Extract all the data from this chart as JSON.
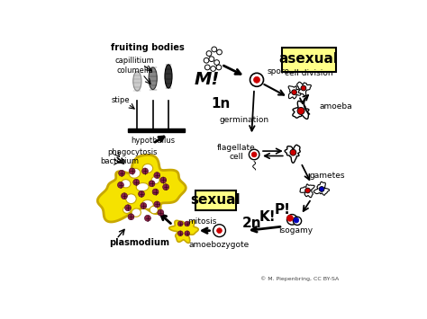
{
  "bg_color": "#ffffff",
  "credit": "© M. Piepenbring, CC BY-SA",
  "labels": {
    "fruiting_bodies": "fruiting bodies",
    "capillitium": "capillitium",
    "columella": "columella",
    "stipe": "stipe",
    "hypothallus": "hypothallus",
    "phagocytosis": "phagocytosis",
    "bacterium": "bacterium",
    "plasmodium": "plasmodium",
    "spore": "spore",
    "asexual": "asexual",
    "cell_division": "cell division",
    "amoeba": "amoeba",
    "germination": "germination",
    "flagellate_cell": "flagellate\ncell",
    "gametes": "gametes",
    "isogamy": "isogamy",
    "sexual": "sexual",
    "mitosis": "mitosis",
    "amoebozygote": "amoebozygote",
    "M": "M!",
    "1n": "1n",
    "2n": "2n",
    "K": "K!",
    "P": "P!"
  },
  "colors": {
    "yellow": "#F5E200",
    "red": "#CC0000",
    "purple": "#882244",
    "blue": "#0000BB",
    "black": "#000000",
    "white": "#ffffff",
    "box_yellow": "#FFFF88",
    "outline_yellow": "#C8A800",
    "gray_light": "#cccccc",
    "gray_mid": "#888888",
    "gray_dark": "#333333"
  }
}
